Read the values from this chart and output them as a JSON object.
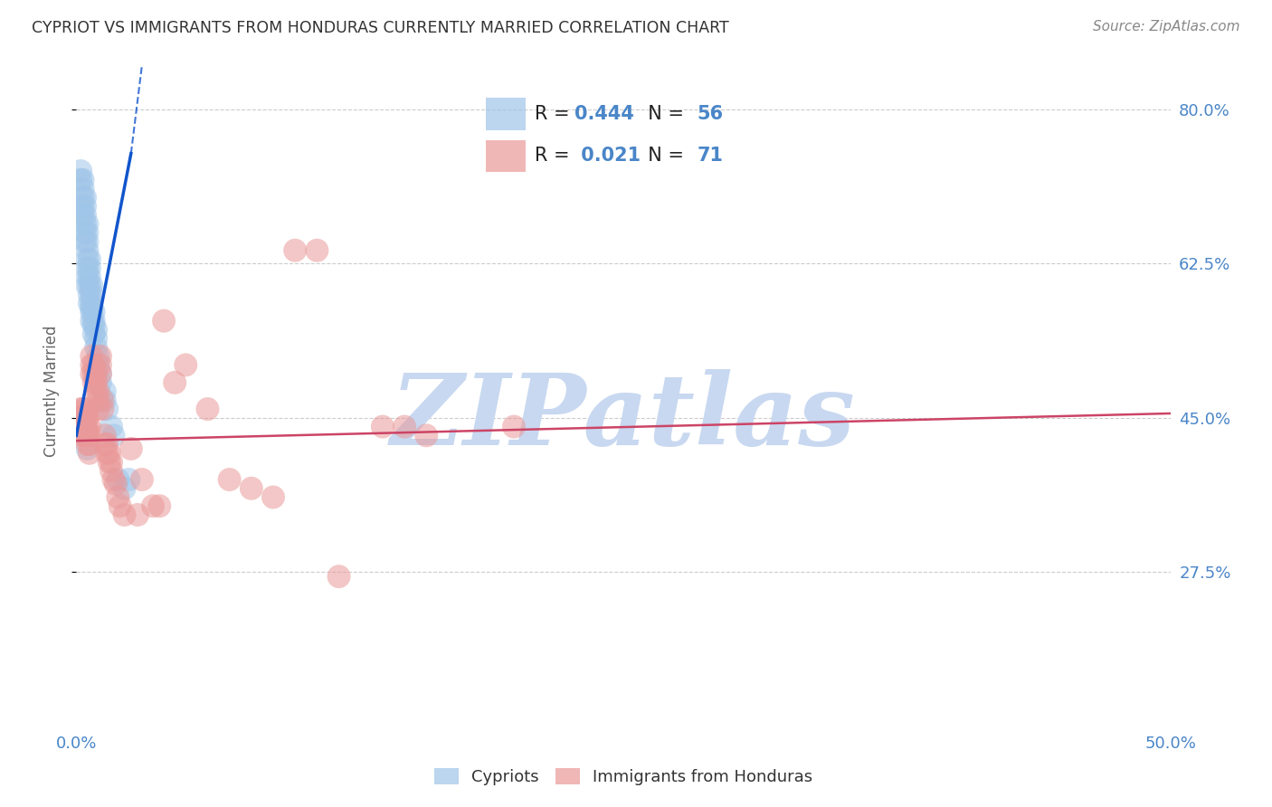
{
  "title": "CYPRIOT VS IMMIGRANTS FROM HONDURAS CURRENTLY MARRIED CORRELATION CHART",
  "source": "Source: ZipAtlas.com",
  "ylabel": "Currently Married",
  "xlim": [
    0.0,
    0.5
  ],
  "ylim": [
    0.1,
    0.86
  ],
  "yticks": [
    0.275,
    0.45,
    0.625,
    0.8
  ],
  "ytick_labels": [
    "27.5%",
    "45.0%",
    "62.5%",
    "80.0%"
  ],
  "xticks": [
    0.0,
    0.1,
    0.2,
    0.3,
    0.4,
    0.5
  ],
  "xtick_labels": [
    "0.0%",
    "",
    "",
    "",
    "",
    "50.0%"
  ],
  "background_color": "#ffffff",
  "grid_color": "#cccccc",
  "blue_color": "#9fc5e8",
  "pink_color": "#ea9999",
  "blue_line_color": "#1155cc",
  "pink_line_color": "#cc4466",
  "label_color": "#4a86c8",
  "text_color": "#333333",
  "R_blue": 0.444,
  "N_blue": 56,
  "R_pink": 0.021,
  "N_pink": 71,
  "blue_scatter_x": [
    0.002,
    0.002,
    0.003,
    0.003,
    0.003,
    0.003,
    0.003,
    0.004,
    0.004,
    0.004,
    0.004,
    0.004,
    0.004,
    0.005,
    0.005,
    0.005,
    0.005,
    0.005,
    0.005,
    0.005,
    0.005,
    0.006,
    0.006,
    0.006,
    0.006,
    0.006,
    0.006,
    0.007,
    0.007,
    0.007,
    0.007,
    0.007,
    0.007,
    0.008,
    0.008,
    0.008,
    0.008,
    0.009,
    0.009,
    0.009,
    0.01,
    0.01,
    0.011,
    0.011,
    0.013,
    0.013,
    0.014,
    0.016,
    0.017,
    0.019,
    0.022,
    0.024,
    0.002,
    0.003,
    0.004,
    0.005
  ],
  "blue_scatter_y": [
    0.72,
    0.73,
    0.68,
    0.69,
    0.7,
    0.71,
    0.72,
    0.65,
    0.66,
    0.67,
    0.68,
    0.69,
    0.7,
    0.6,
    0.61,
    0.62,
    0.63,
    0.64,
    0.65,
    0.66,
    0.67,
    0.58,
    0.59,
    0.6,
    0.61,
    0.62,
    0.63,
    0.56,
    0.57,
    0.575,
    0.58,
    0.59,
    0.6,
    0.545,
    0.555,
    0.56,
    0.57,
    0.53,
    0.54,
    0.55,
    0.51,
    0.52,
    0.49,
    0.5,
    0.47,
    0.48,
    0.46,
    0.44,
    0.43,
    0.38,
    0.37,
    0.38,
    0.45,
    0.45,
    0.43,
    0.415
  ],
  "pink_scatter_x": [
    0.002,
    0.002,
    0.002,
    0.003,
    0.003,
    0.003,
    0.003,
    0.004,
    0.004,
    0.004,
    0.004,
    0.004,
    0.005,
    0.005,
    0.005,
    0.005,
    0.005,
    0.005,
    0.006,
    0.006,
    0.006,
    0.006,
    0.007,
    0.007,
    0.007,
    0.008,
    0.008,
    0.008,
    0.009,
    0.009,
    0.009,
    0.01,
    0.01,
    0.01,
    0.011,
    0.011,
    0.011,
    0.012,
    0.012,
    0.013,
    0.013,
    0.014,
    0.014,
    0.015,
    0.015,
    0.016,
    0.016,
    0.017,
    0.018,
    0.019,
    0.02,
    0.022,
    0.025,
    0.028,
    0.03,
    0.035,
    0.038,
    0.04,
    0.045,
    0.05,
    0.06,
    0.07,
    0.08,
    0.09,
    0.1,
    0.11,
    0.12,
    0.14,
    0.15,
    0.16,
    0.2
  ],
  "pink_scatter_y": [
    0.44,
    0.45,
    0.46,
    0.43,
    0.44,
    0.45,
    0.46,
    0.43,
    0.44,
    0.45,
    0.455,
    0.46,
    0.42,
    0.43,
    0.435,
    0.44,
    0.45,
    0.455,
    0.41,
    0.42,
    0.43,
    0.44,
    0.5,
    0.51,
    0.52,
    0.49,
    0.5,
    0.51,
    0.48,
    0.49,
    0.5,
    0.46,
    0.47,
    0.48,
    0.5,
    0.51,
    0.52,
    0.46,
    0.47,
    0.42,
    0.43,
    0.41,
    0.42,
    0.4,
    0.41,
    0.39,
    0.4,
    0.38,
    0.375,
    0.36,
    0.35,
    0.34,
    0.415,
    0.34,
    0.38,
    0.35,
    0.35,
    0.56,
    0.49,
    0.51,
    0.46,
    0.38,
    0.37,
    0.36,
    0.64,
    0.64,
    0.27,
    0.44,
    0.44,
    0.43,
    0.44
  ],
  "watermark": "ZIPatlas",
  "watermark_color": "#c8d8f0",
  "watermark_fontsize": 80
}
